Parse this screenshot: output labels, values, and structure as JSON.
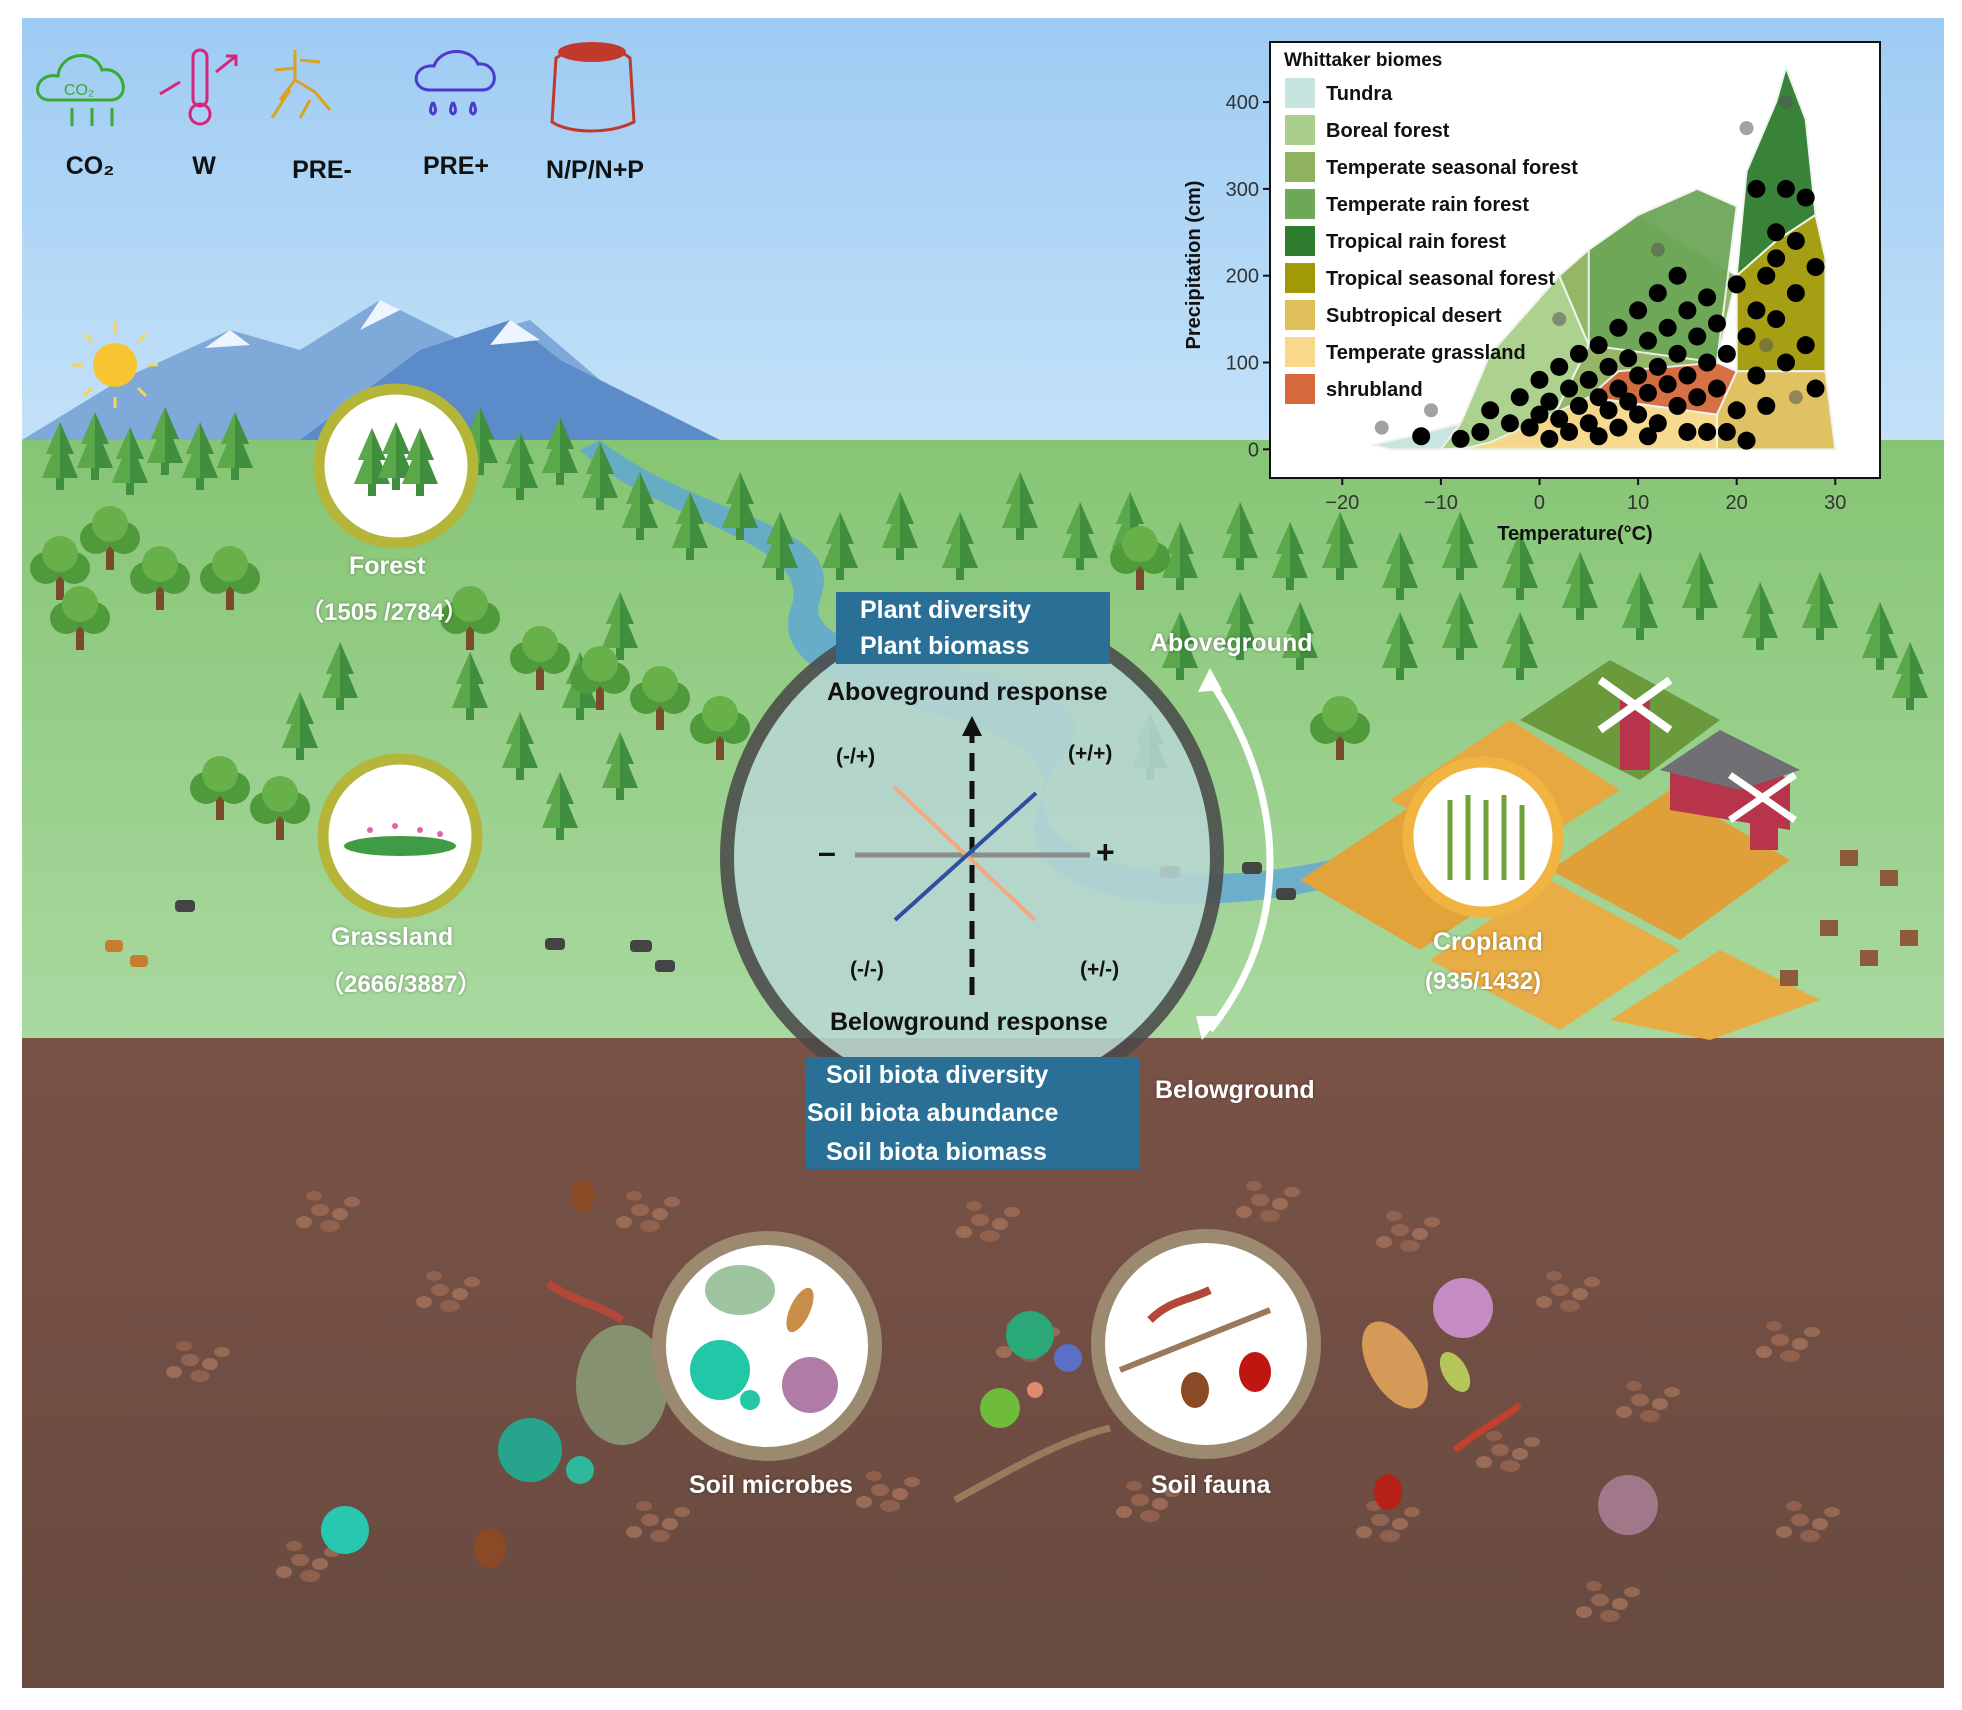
{
  "drivers": [
    {
      "label": "CO₂",
      "icon": "co2-cloud-icon",
      "color": "#3aaa35"
    },
    {
      "label": "W",
      "icon": "thermometer-warming-icon",
      "color": "#d6267a"
    },
    {
      "label": "PRE-",
      "icon": "drought-roots-icon",
      "color": "#d9a21f"
    },
    {
      "label": "PRE+",
      "icon": "rain-cloud-icon",
      "color": "#4a3ad0"
    },
    {
      "label": "N/P/N+P",
      "icon": "fertilizer-sack-icon",
      "color": "#c0392b"
    }
  ],
  "ecosystems": {
    "forest": {
      "name": "Forest",
      "count": "（1505 /2784）"
    },
    "grassland": {
      "name": "Grassland",
      "count": "（2666/3887）"
    },
    "cropland": {
      "name": "Cropland",
      "count": "(935/1432)"
    }
  },
  "response": {
    "above_box": [
      "Plant diversity",
      "Plant biomass"
    ],
    "above_title": "Aboveground response",
    "below_title": "Belowground response",
    "below_box": [
      "Soil biota diversity",
      "Soil biota abundance",
      "Soil biota biomass"
    ],
    "quadrants": {
      "top_left": "(-/+)",
      "top_right": "(+/+)",
      "bottom_left": "(-/-)",
      "bottom_right": "(+/-)"
    },
    "axis_minus": "–",
    "axis_plus": "+",
    "side_above": "Aboveground",
    "side_below": "Belowground",
    "line_colors": {
      "positive": "#2c4f9e",
      "negative": "#f3a882"
    }
  },
  "soil": {
    "microbes": "Soil microbes",
    "fauna": "Soil fauna"
  },
  "colors": {
    "sky": "#a9d0f5",
    "grass": "#8cc97a",
    "soil": "#6e4b40",
    "badge_ring": "#b5b53a",
    "crop_ring": "#f2b441"
  },
  "chart_data": {
    "type": "scatter",
    "title": "Whittaker biomes",
    "xlabel": "Temperature(°C)",
    "ylabel": "Precipitation (cm)",
    "xlim": [
      -25,
      32
    ],
    "ylim": [
      -10,
      460
    ],
    "xticks": [
      -20,
      -10,
      0,
      10,
      20,
      30
    ],
    "yticks": [
      0,
      100,
      200,
      300,
      400
    ],
    "legend_position": "top-left",
    "biomes": [
      {
        "name": "Tundra",
        "color": "#c8e4de"
      },
      {
        "name": "Boreal forest",
        "color": "#a9cf8a"
      },
      {
        "name": "Temperate seasonal forest",
        "color": "#8fb35e"
      },
      {
        "name": "Temperate rain forest",
        "color": "#6ea758"
      },
      {
        "name": "Tropical rain forest",
        "color": "#2e7d2e"
      },
      {
        "name": "Tropical seasonal forest",
        "color": "#a39a07"
      },
      {
        "name": "Subtropical desert",
        "color": "#dfbf5a"
      },
      {
        "name": "Temperate grassland",
        "color": "#f8d88b"
      },
      {
        "name": "shrubland",
        "color": "#d6693c"
      }
    ],
    "regions": [
      {
        "biome": "Tundra",
        "polygon": [
          [
            -15,
            0
          ],
          [
            -10,
            0
          ],
          [
            -5,
            8
          ],
          [
            -8,
            30
          ],
          [
            -12,
            18
          ],
          [
            -17,
            5
          ]
        ]
      },
      {
        "biome": "Boreal forest",
        "polygon": [
          [
            -10,
            0
          ],
          [
            0,
            5
          ],
          [
            5,
            120
          ],
          [
            2,
            200
          ],
          [
            -5,
            110
          ],
          [
            -8,
            30
          ]
        ]
      },
      {
        "biome": "Temperate seasonal forest",
        "polygon": [
          [
            0,
            5
          ],
          [
            18,
            100
          ],
          [
            20,
            200
          ],
          [
            10,
            270
          ],
          [
            5,
            230
          ],
          [
            2,
            200
          ],
          [
            5,
            120
          ]
        ]
      },
      {
        "biome": "Temperate rain forest",
        "polygon": [
          [
            5,
            120
          ],
          [
            18,
            100
          ],
          [
            20,
            280
          ],
          [
            16,
            300
          ],
          [
            10,
            270
          ],
          [
            5,
            230
          ]
        ]
      },
      {
        "biome": "Tropical rain forest",
        "polygon": [
          [
            20,
            200
          ],
          [
            21,
            320
          ],
          [
            24,
            400
          ],
          [
            25,
            440
          ],
          [
            27,
            380
          ],
          [
            28,
            270
          ],
          [
            24,
            240
          ]
        ]
      },
      {
        "biome": "Tropical seasonal forest",
        "polygon": [
          [
            20,
            90
          ],
          [
            29,
            90
          ],
          [
            29,
            220
          ],
          [
            28,
            270
          ],
          [
            24,
            240
          ],
          [
            20,
            200
          ]
        ]
      },
      {
        "biome": "Subtropical desert",
        "polygon": [
          [
            18,
            0
          ],
          [
            30,
            0
          ],
          [
            29,
            90
          ],
          [
            20,
            90
          ],
          [
            18,
            40
          ]
        ]
      },
      {
        "biome": "Temperate grassland",
        "polygon": [
          [
            -8,
            0
          ],
          [
            18,
            0
          ],
          [
            18,
            40
          ],
          [
            5,
            60
          ],
          [
            -5,
            8
          ]
        ]
      },
      {
        "biome": "shrubland",
        "polygon": [
          [
            5,
            60
          ],
          [
            18,
            40
          ],
          [
            20,
            90
          ],
          [
            18,
            100
          ],
          [
            8,
            90
          ]
        ]
      }
    ],
    "gray_points": [
      {
        "x": -16,
        "y": 25
      },
      {
        "x": -11,
        "y": 45
      },
      {
        "x": 21,
        "y": 370
      },
      {
        "x": 25,
        "y": 400
      },
      {
        "x": 2,
        "y": 150
      },
      {
        "x": 12,
        "y": 230
      },
      {
        "x": 23,
        "y": 120
      },
      {
        "x": 26,
        "y": 60
      }
    ],
    "black_points": [
      {
        "x": -12,
        "y": 15
      },
      {
        "x": -6,
        "y": 20
      },
      {
        "x": -5,
        "y": 45
      },
      {
        "x": -3,
        "y": 30
      },
      {
        "x": -2,
        "y": 60
      },
      {
        "x": -1,
        "y": 25
      },
      {
        "x": 0,
        "y": 40
      },
      {
        "x": 0,
        "y": 80
      },
      {
        "x": 1,
        "y": 55
      },
      {
        "x": 2,
        "y": 35
      },
      {
        "x": 2,
        "y": 95
      },
      {
        "x": 3,
        "y": 70
      },
      {
        "x": 3,
        "y": 20
      },
      {
        "x": 4,
        "y": 50
      },
      {
        "x": 4,
        "y": 110
      },
      {
        "x": 5,
        "y": 30
      },
      {
        "x": 5,
        "y": 80
      },
      {
        "x": 6,
        "y": 60
      },
      {
        "x": 6,
        "y": 120
      },
      {
        "x": 7,
        "y": 45
      },
      {
        "x": 7,
        "y": 95
      },
      {
        "x": 8,
        "y": 25
      },
      {
        "x": 8,
        "y": 70
      },
      {
        "x": 8,
        "y": 140
      },
      {
        "x": 9,
        "y": 55
      },
      {
        "x": 9,
        "y": 105
      },
      {
        "x": 10,
        "y": 40
      },
      {
        "x": 10,
        "y": 85
      },
      {
        "x": 10,
        "y": 160
      },
      {
        "x": 11,
        "y": 65
      },
      {
        "x": 11,
        "y": 125
      },
      {
        "x": 12,
        "y": 30
      },
      {
        "x": 12,
        "y": 95
      },
      {
        "x": 12,
        "y": 180
      },
      {
        "x": 13,
        "y": 75
      },
      {
        "x": 13,
        "y": 140
      },
      {
        "x": 14,
        "y": 50
      },
      {
        "x": 14,
        "y": 110
      },
      {
        "x": 14,
        "y": 200
      },
      {
        "x": 15,
        "y": 85
      },
      {
        "x": 15,
        "y": 160
      },
      {
        "x": 16,
        "y": 60
      },
      {
        "x": 16,
        "y": 130
      },
      {
        "x": 17,
        "y": 20
      },
      {
        "x": 17,
        "y": 100
      },
      {
        "x": 17,
        "y": 175
      },
      {
        "x": 18,
        "y": 70
      },
      {
        "x": 18,
        "y": 145
      },
      {
        "x": 19,
        "y": 110
      },
      {
        "x": 20,
        "y": 45
      },
      {
        "x": 20,
        "y": 190
      },
      {
        "x": 21,
        "y": 130
      },
      {
        "x": 21,
        "y": 10
      },
      {
        "x": 22,
        "y": 160
      },
      {
        "x": 22,
        "y": 85
      },
      {
        "x": 23,
        "y": 200
      },
      {
        "x": 23,
        "y": 50
      },
      {
        "x": 24,
        "y": 150
      },
      {
        "x": 24,
        "y": 250
      },
      {
        "x": 25,
        "y": 100
      },
      {
        "x": 25,
        "y": 300
      },
      {
        "x": 26,
        "y": 240
      },
      {
        "x": 26,
        "y": 180
      },
      {
        "x": 27,
        "y": 120
      },
      {
        "x": 27,
        "y": 290
      },
      {
        "x": 28,
        "y": 70
      },
      {
        "x": 28,
        "y": 210
      },
      {
        "x": 22,
        "y": 300
      },
      {
        "x": 24,
        "y": 220
      },
      {
        "x": 19,
        "y": 20
      },
      {
        "x": 15,
        "y": 20
      },
      {
        "x": 11,
        "y": 15
      },
      {
        "x": 6,
        "y": 15
      },
      {
        "x": 1,
        "y": 12
      },
      {
        "x": -8,
        "y": 12
      }
    ]
  }
}
